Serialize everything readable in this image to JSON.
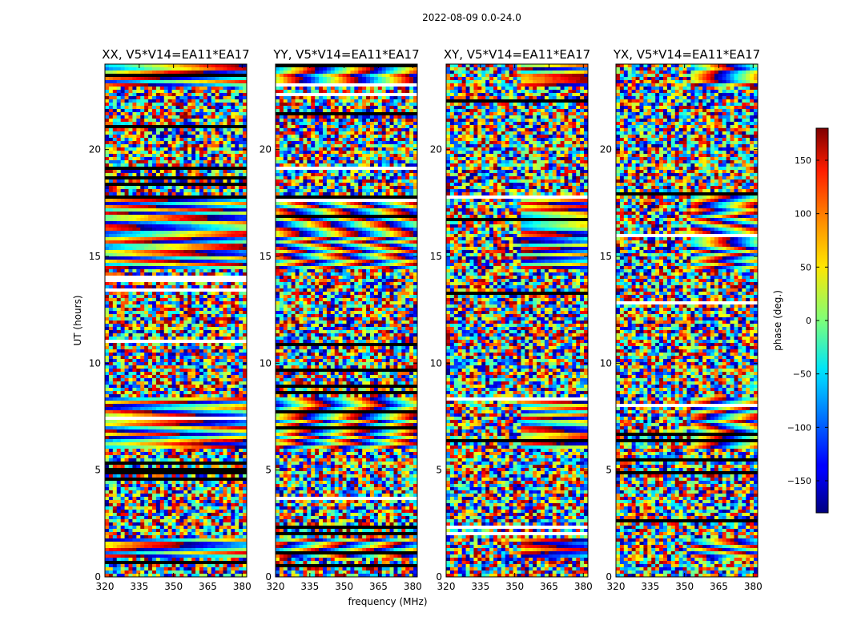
{
  "suptitle": "2022-08-09 0.0-24.0",
  "chart_data": {
    "type": "heatmap",
    "panels": [
      {
        "title": "XX, V5*V14=EA11*EA17",
        "polarization": "XX"
      },
      {
        "title": "YY, V5*V14=EA11*EA17",
        "polarization": "YY"
      },
      {
        "title": "XY, V5*V14=EA11*EA17",
        "polarization": "XY"
      },
      {
        "title": "YX, V5*V14=EA11*EA17",
        "polarization": "YX"
      }
    ],
    "xlabel": "frequency (MHz)",
    "ylabel": "UT (hours)",
    "xlim": [
      320,
      382
    ],
    "xticks": [
      320,
      335,
      350,
      365,
      380
    ],
    "ylim": [
      0,
      24
    ],
    "yticks": [
      0,
      5,
      10,
      15,
      20
    ],
    "colorbar": {
      "label": "phase (deg.)",
      "range": [
        -180,
        180
      ],
      "ticks": [
        150,
        100,
        50,
        0,
        -50,
        -100,
        -150
      ],
      "ticklabels": [
        "150",
        "100",
        "50",
        "0",
        "−50",
        "−100",
        "−150"
      ],
      "colormap": "jet"
    }
  }
}
